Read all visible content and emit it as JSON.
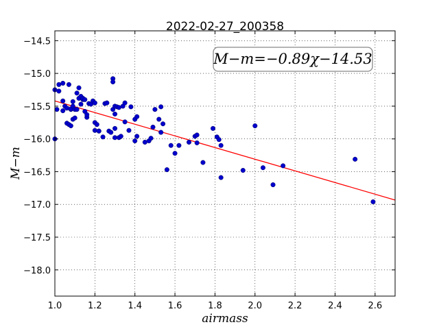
{
  "chart_data": {
    "type": "scatter",
    "title": "2022-02-27_200358",
    "xlabel": "airmass",
    "ylabel": "M−m",
    "xlim": [
      1.0,
      2.7
    ],
    "ylim": [
      -18.4,
      -14.35
    ],
    "y_inverted": true,
    "grid": true,
    "grid_style": "dotted",
    "xticks": [
      "1.0",
      "1.2",
      "1.4",
      "1.6",
      "1.8",
      "2.0",
      "2.2",
      "2.4",
      "2.6"
    ],
    "yticks": [
      "−14.5",
      "−15.0",
      "−15.5",
      "−16.0",
      "−16.5",
      "−17.0",
      "−17.5",
      "−18.0"
    ],
    "fit_label": "M−m=−0.89χ−14.53",
    "fit": {
      "slope": -0.89,
      "intercept": -14.53,
      "color": "#ff0000"
    },
    "marker_color": "#0000cc",
    "points": {
      "x": [
        1.0,
        1.0,
        1.01,
        1.02,
        1.02,
        1.04,
        1.04,
        1.04,
        1.05,
        1.06,
        1.06,
        1.07,
        1.07,
        1.08,
        1.08,
        1.08,
        1.09,
        1.09,
        1.09,
        1.1,
        1.1,
        1.11,
        1.11,
        1.12,
        1.12,
        1.13,
        1.13,
        1.14,
        1.14,
        1.15,
        1.15,
        1.16,
        1.16,
        1.17,
        1.18,
        1.19,
        1.2,
        1.2,
        1.2,
        1.21,
        1.22,
        1.22,
        1.24,
        1.25,
        1.26,
        1.27,
        1.28,
        1.29,
        1.29,
        1.29,
        1.3,
        1.3,
        1.3,
        1.3,
        1.31,
        1.32,
        1.32,
        1.33,
        1.34,
        1.35,
        1.35,
        1.37,
        1.38,
        1.4,
        1.4,
        1.41,
        1.41,
        1.45,
        1.47,
        1.48,
        1.49,
        1.5,
        1.52,
        1.53,
        1.53,
        1.54,
        1.56,
        1.58,
        1.6,
        1.62,
        1.67,
        1.7,
        1.71,
        1.71,
        1.74,
        1.79,
        1.81,
        1.82,
        1.83,
        1.83,
        1.94,
        2.0,
        2.04,
        2.09,
        2.14,
        2.5,
        2.59
      ],
      "y": [
        -15.25,
        -16.0,
        -15.55,
        -15.17,
        -15.27,
        -15.42,
        -15.57,
        -15.15,
        -15.5,
        -15.76,
        -15.53,
        -15.17,
        -15.78,
        -15.55,
        -15.8,
        -15.54,
        -15.5,
        -15.43,
        -15.7,
        -15.68,
        -15.55,
        -15.55,
        -15.3,
        -15.38,
        -15.22,
        -15.47,
        -15.35,
        -15.4,
        -15.38,
        -15.4,
        -15.58,
        -15.67,
        -15.63,
        -15.46,
        -15.47,
        -15.42,
        -15.45,
        -15.75,
        -15.87,
        -15.78,
        -15.88,
        -15.88,
        -15.97,
        -15.46,
        -15.45,
        -15.88,
        -15.9,
        -15.08,
        -15.13,
        -15.55,
        -15.5,
        -15.62,
        -15.84,
        -15.98,
        -15.51,
        -15.52,
        -15.98,
        -15.96,
        -15.5,
        -15.45,
        -15.74,
        -15.87,
        -15.51,
        -15.7,
        -16.03,
        -15.96,
        -15.66,
        -16.05,
        -16.03,
        -15.99,
        -15.82,
        -15.55,
        -15.7,
        -15.51,
        -15.9,
        -15.77,
        -16.47,
        -16.1,
        -16.22,
        -16.1,
        -16.05,
        -15.96,
        -15.94,
        -16.06,
        -16.36,
        -15.84,
        -15.97,
        -16.01,
        -16.1,
        -16.59,
        -16.48,
        -15.8,
        -16.44,
        -16.7,
        -16.41,
        -16.31,
        -16.96
      ]
    }
  }
}
